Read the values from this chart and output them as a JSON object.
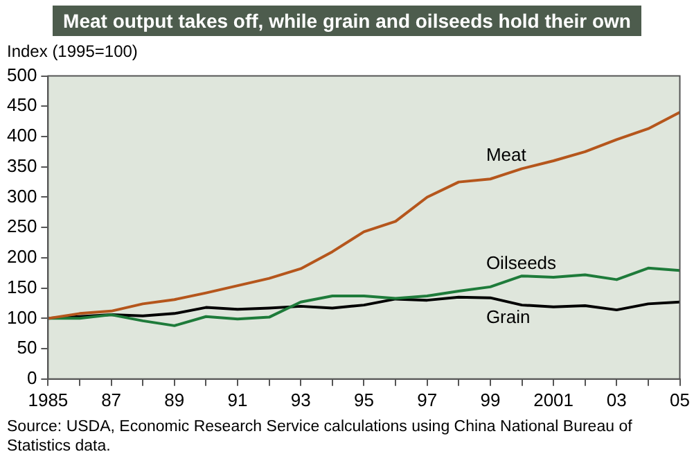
{
  "chart_data": {
    "type": "line",
    "title": "Meat output takes off, while grain and oilseeds hold their own",
    "ylabel": "Index (1995=100)",
    "x": [
      1985,
      1986,
      1987,
      1988,
      1989,
      1990,
      1991,
      1992,
      1993,
      1994,
      1995,
      1996,
      1997,
      1998,
      1999,
      2000,
      2001,
      2002,
      2003,
      2004,
      2005
    ],
    "series": [
      {
        "name": "Meat",
        "color": "#b5561c",
        "values": [
          100,
          108,
          112,
          124,
          131,
          142,
          154,
          166,
          182,
          210,
          243,
          260,
          300,
          325,
          330,
          347,
          360,
          375,
          395,
          413,
          440
        ]
      },
      {
        "name": "Oilseeds",
        "color": "#1e7b3a",
        "values": [
          100,
          100,
          106,
          96,
          88,
          103,
          99,
          102,
          127,
          137,
          137,
          133,
          137,
          145,
          152,
          170,
          168,
          172,
          164,
          183,
          179
        ]
      },
      {
        "name": "Grain",
        "color": "#000000",
        "values": [
          100,
          103,
          106,
          104,
          108,
          118,
          115,
          117,
          120,
          117,
          122,
          132,
          130,
          135,
          134,
          122,
          119,
          121,
          114,
          124,
          127
        ]
      }
    ],
    "xlim": [
      1985,
      2005
    ],
    "xticks": [
      {
        "value": 1985,
        "label": "1985"
      },
      {
        "value": 1986,
        "label": null
      },
      {
        "value": 1987,
        "label": "87"
      },
      {
        "value": 1988,
        "label": null
      },
      {
        "value": 1989,
        "label": "89"
      },
      {
        "value": 1990,
        "label": null
      },
      {
        "value": 1991,
        "label": "91"
      },
      {
        "value": 1992,
        "label": null
      },
      {
        "value": 1993,
        "label": "93"
      },
      {
        "value": 1994,
        "label": null
      },
      {
        "value": 1995,
        "label": "95"
      },
      {
        "value": 1996,
        "label": null
      },
      {
        "value": 1997,
        "label": "97"
      },
      {
        "value": 1998,
        "label": null
      },
      {
        "value": 1999,
        "label": "99"
      },
      {
        "value": 2000,
        "label": null
      },
      {
        "value": 2001,
        "label": "2001"
      },
      {
        "value": 2002,
        "label": null
      },
      {
        "value": 2003,
        "label": "03"
      },
      {
        "value": 2004,
        "label": null
      },
      {
        "value": 2005,
        "label": "05"
      }
    ],
    "ylim": [
      0,
      500
    ],
    "yticks": [
      0,
      50,
      100,
      150,
      200,
      250,
      300,
      350,
      400,
      450,
      500
    ],
    "marker": "none",
    "line_style": "solid",
    "annotations": [
      "Source:  USDA, Economic Research Service calculations using China National Bureau of Statistics data."
    ]
  }
}
